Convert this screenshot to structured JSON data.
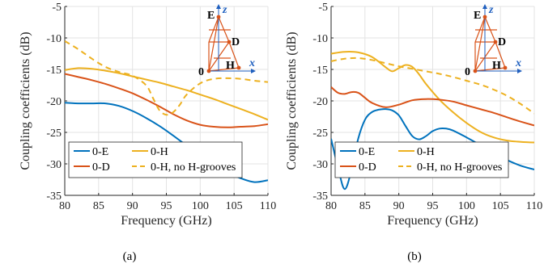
{
  "chart_data": [
    {
      "type": "line",
      "xlabel": "Frequency (GHz)",
      "ylabel": "Coupling coefficients (dB)",
      "caption": "(a)",
      "xlim": [
        80,
        110
      ],
      "ylim": [
        -35,
        -5
      ],
      "x_ticks": [
        "80",
        "85",
        "90",
        "95",
        "100",
        "105",
        "110"
      ],
      "y_ticks": [
        "-5",
        "-10",
        "-15",
        "-20",
        "-25",
        "-30",
        "-35"
      ],
      "grid": true,
      "legend_placement": "bottom-left",
      "inset": {
        "labels": [
          "E",
          "D",
          "H",
          "0"
        ],
        "axes": [
          "z",
          "x"
        ]
      },
      "series": [
        {
          "name": "0-E",
          "color": "#0072BD",
          "dash": "solid",
          "x": [
            80,
            82,
            84,
            86,
            88,
            90,
            92,
            94,
            96,
            98,
            100,
            102,
            104,
            106,
            108,
            110
          ],
          "y": [
            -20.3,
            -20.4,
            -20.4,
            -20.4,
            -20.8,
            -21.6,
            -22.7,
            -24.0,
            -25.5,
            -27.1,
            -28.6,
            -30.0,
            -31.3,
            -32.3,
            -32.9,
            -32.6
          ]
        },
        {
          "name": "0-H",
          "color": "#EDB120",
          "dash": "solid",
          "x": [
            80,
            82,
            84,
            86,
            88,
            90,
            92,
            94,
            96,
            98,
            100,
            102,
            104,
            106,
            108,
            110
          ],
          "y": [
            -15.1,
            -14.8,
            -14.9,
            -15.2,
            -15.6,
            -16.1,
            -16.6,
            -17.1,
            -17.7,
            -18.3,
            -19.0,
            -19.7,
            -20.5,
            -21.3,
            -22.1,
            -23.0
          ]
        },
        {
          "name": "0-D",
          "color": "#D95319",
          "dash": "solid",
          "x": [
            80,
            82,
            84,
            86,
            88,
            90,
            92,
            94,
            96,
            98,
            100,
            102,
            104,
            106,
            108,
            110
          ],
          "y": [
            -15.7,
            -16.2,
            -16.7,
            -17.3,
            -18.0,
            -18.8,
            -19.8,
            -20.9,
            -22.1,
            -23.1,
            -23.8,
            -24.1,
            -24.2,
            -24.1,
            -24.0,
            -23.7
          ]
        },
        {
          "name": "0-H, no H-grooves",
          "color": "#EDB120",
          "dash": "dashed",
          "x": [
            80,
            82,
            84,
            86,
            88,
            90,
            92,
            93,
            94,
            95,
            96,
            97,
            98,
            100,
            102,
            104,
            106,
            108,
            110
          ],
          "y": [
            -10.5,
            -11.8,
            -13.3,
            -14.6,
            -15.4,
            -16.0,
            -17.5,
            -19.5,
            -21.5,
            -22.2,
            -21.8,
            -20.6,
            -19.0,
            -17.2,
            -16.5,
            -16.4,
            -16.5,
            -16.8,
            -17.0
          ]
        }
      ]
    },
    {
      "type": "line",
      "xlabel": "Frequency (GHz)",
      "ylabel": "Coupling coefficients (dB)",
      "caption": "(b)",
      "xlim": [
        80,
        110
      ],
      "ylim": [
        -35,
        -5
      ],
      "x_ticks": [
        "80",
        "85",
        "90",
        "95",
        "100",
        "105",
        "110"
      ],
      "y_ticks": [
        "-5",
        "-10",
        "-15",
        "-20",
        "-25",
        "-30",
        "-35"
      ],
      "grid": true,
      "legend_placement": "bottom-left",
      "inset": {
        "labels": [
          "E",
          "D",
          "H",
          "0"
        ],
        "axes": [
          "z",
          "x"
        ]
      },
      "series": [
        {
          "name": "0-E",
          "color": "#0072BD",
          "dash": "solid",
          "x": [
            80,
            81,
            82,
            83,
            84,
            85,
            86,
            87,
            88,
            89,
            90,
            91,
            92,
            93,
            94,
            95,
            96,
            97,
            98,
            100,
            102,
            104,
            106,
            108,
            110
          ],
          "y": [
            -26.0,
            -30.5,
            -34.0,
            -31.0,
            -26.0,
            -23.0,
            -21.8,
            -21.4,
            -21.3,
            -21.5,
            -22.3,
            -24.0,
            -25.6,
            -26.1,
            -25.6,
            -24.8,
            -24.4,
            -24.4,
            -24.7,
            -25.8,
            -27.0,
            -28.3,
            -29.4,
            -30.3,
            -30.9
          ]
        },
        {
          "name": "0-H",
          "color": "#EDB120",
          "dash": "solid",
          "x": [
            80,
            82,
            84,
            86,
            88,
            89,
            90,
            91,
            92,
            93,
            94,
            96,
            98,
            100,
            102,
            104,
            106,
            108,
            110
          ],
          "y": [
            -12.5,
            -12.2,
            -12.3,
            -13.0,
            -14.6,
            -15.3,
            -14.8,
            -14.3,
            -14.6,
            -15.8,
            -17.3,
            -19.8,
            -21.8,
            -23.5,
            -24.9,
            -25.8,
            -26.3,
            -26.5,
            -26.6
          ]
        },
        {
          "name": "0-D",
          "color": "#D95319",
          "dash": "solid",
          "x": [
            80,
            81,
            82,
            83,
            84,
            85,
            86,
            88,
            90,
            92,
            94,
            96,
            98,
            100,
            102,
            104,
            106,
            108,
            110
          ],
          "y": [
            -17.8,
            -18.7,
            -18.9,
            -18.6,
            -18.7,
            -19.5,
            -20.3,
            -21.0,
            -20.6,
            -19.9,
            -19.7,
            -19.8,
            -20.1,
            -20.7,
            -21.3,
            -21.9,
            -22.6,
            -23.3,
            -23.9
          ]
        },
        {
          "name": "0-H, no H-grooves",
          "color": "#EDB120",
          "dash": "dashed",
          "x": [
            80,
            82,
            84,
            86,
            88,
            90,
            92,
            94,
            96,
            98,
            100,
            102,
            104,
            106,
            108,
            110
          ],
          "y": [
            -13.7,
            -13.3,
            -13.2,
            -13.5,
            -14.0,
            -14.5,
            -14.9,
            -15.3,
            -15.7,
            -16.2,
            -16.8,
            -17.4,
            -18.2,
            -19.2,
            -20.5,
            -22.0
          ]
        }
      ]
    }
  ]
}
